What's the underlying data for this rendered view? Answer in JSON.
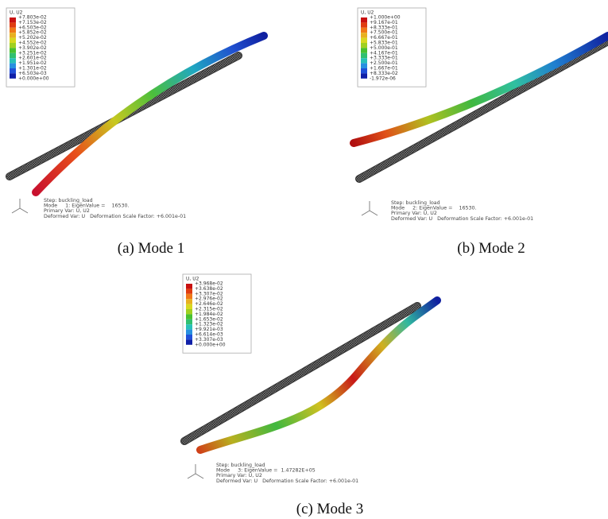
{
  "panels": [
    {
      "legend_title": "U, U2",
      "legend_labels": [
        "+7.803e-02",
        "+7.153e-02",
        "+6.503e-02",
        "+5.852e-02",
        "+5.202e-02",
        "+4.552e-02",
        "+3.902e-02",
        "+3.251e-02",
        "+2.601e-02",
        "+1.951e-02",
        "+1.301e-02",
        "+6.503e-03",
        "+0.000e+00"
      ],
      "info": [
        "Step: buckling_load",
        "Mode     1: EigenValue =    16530.",
        "Primary Var: U, U2",
        "Deformed Var: U   Deformation Scale Factor: +6.001e-01"
      ],
      "caption": "(a) Mode 1"
    },
    {
      "legend_title": "U, U2",
      "legend_labels": [
        "+1.000e+00",
        "+9.167e-01",
        "+8.333e-01",
        "+7.500e-01",
        "+6.667e-01",
        "+5.833e-01",
        "+5.000e-01",
        "+4.167e-01",
        "+3.333e-01",
        "+2.500e-01",
        "+1.667e-01",
        "+8.333e-02",
        "-1.972e-06"
      ],
      "info": [
        "Step: buckling_load",
        "Mode     2: EigenValue =    16530.",
        "Primary Var: U, U2",
        "Deformed Var: U   Deformation Scale Factor: +6.001e-01"
      ],
      "caption": "(b) Mode 2"
    },
    {
      "legend_title": "U, U2",
      "legend_labels": [
        "+3.968e-02",
        "+3.638e-02",
        "+3.307e-02",
        "+2.976e-02",
        "+2.646e-02",
        "+2.315e-02",
        "+1.984e-02",
        "+1.653e-02",
        "+1.323e-02",
        "+9.921e-03",
        "+6.614e-03",
        "+3.307e-03",
        "+0.000e+00"
      ],
      "info": [
        "Step: buckling_load",
        "Mode     3: EigenValue =  1.47282E+05",
        "Primary Var: U, U2",
        "Deformed Var: U   Deformation Scale Factor: +6.001e-01"
      ],
      "caption": "(c) Mode 3"
    }
  ]
}
